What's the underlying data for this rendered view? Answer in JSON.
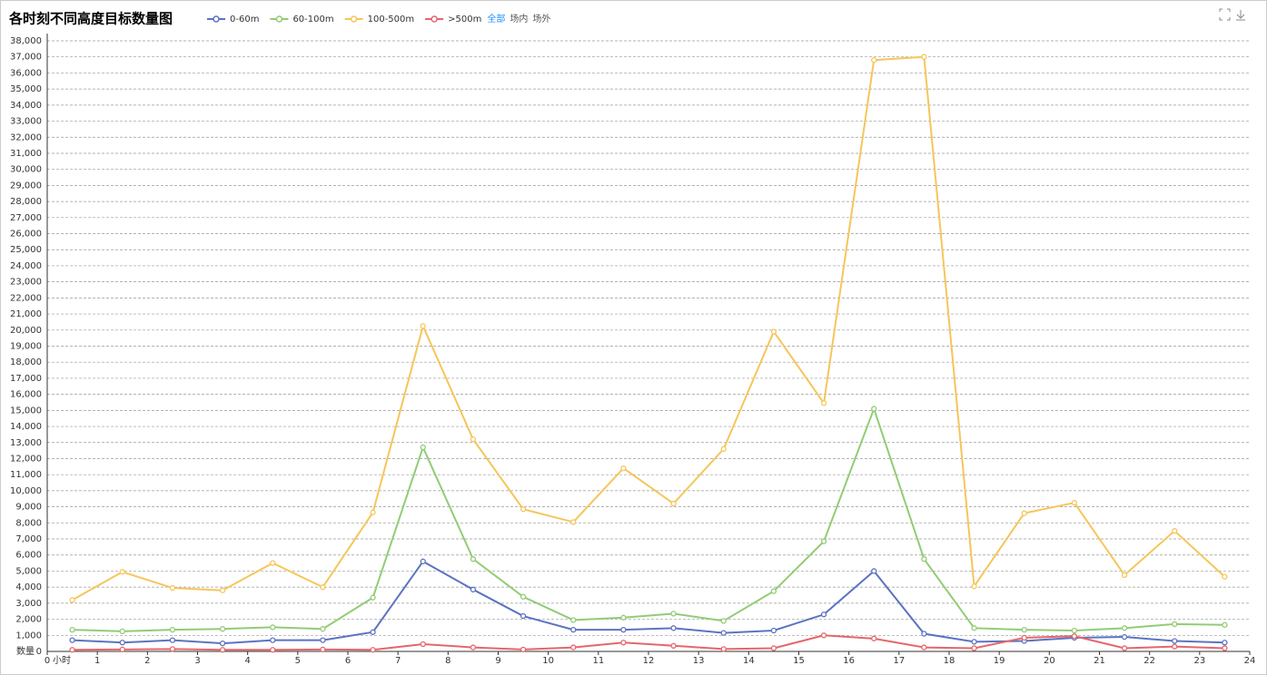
{
  "chart_data": {
    "type": "line",
    "title": "各时刻不同高度目标数量图",
    "x_label": "小时",
    "y_label": "数量",
    "filters": [
      "全部",
      "场内",
      "场外"
    ],
    "x": [
      0.5,
      1.5,
      2.5,
      3.5,
      4.5,
      5.5,
      6.5,
      7.5,
      8.5,
      9.5,
      10.5,
      11.5,
      12.5,
      13.5,
      14.5,
      15.5,
      16.5,
      17.5,
      18.5,
      19.5,
      20.5,
      21.5,
      22.5,
      23.5
    ],
    "series": [
      {
        "name": "0-60m",
        "color": "#5b73c2",
        "values": [
          700,
          550,
          700,
          500,
          700,
          700,
          1200,
          5600,
          3850,
          2200,
          1350,
          1350,
          1450,
          1150,
          1300,
          2300,
          5000,
          1100,
          600,
          650,
          850,
          900,
          650,
          550
        ]
      },
      {
        "name": "60-100m",
        "color": "#91cc75",
        "values": [
          1350,
          1250,
          1350,
          1400,
          1500,
          1400,
          3350,
          12700,
          5750,
          3400,
          1950,
          2100,
          2350,
          1900,
          3750,
          6850,
          15100,
          5750,
          1450,
          1350,
          1300,
          1450,
          1700,
          1650
        ]
      },
      {
        "name": "100-500m",
        "color": "#f5c65a",
        "values": [
          3200,
          4950,
          3950,
          3800,
          5500,
          4000,
          8650,
          20250,
          13200,
          8850,
          8050,
          11400,
          9200,
          12600,
          19900,
          15450,
          36800,
          37000,
          4050,
          8600,
          9250,
          4750,
          7500,
          4650
        ]
      },
      {
        "name": ">500m",
        "color": "#e5666a",
        "values": [
          100,
          120,
          150,
          100,
          100,
          120,
          100,
          450,
          250,
          120,
          250,
          550,
          350,
          150,
          200,
          1000,
          800,
          250,
          200,
          850,
          950,
          200,
          300,
          200
        ]
      }
    ],
    "xlim": [
      0,
      24
    ],
    "xticks": [
      0,
      1,
      2,
      3,
      4,
      5,
      6,
      7,
      8,
      9,
      10,
      11,
      12,
      13,
      14,
      15,
      16,
      17,
      18,
      19,
      20,
      21,
      22,
      23,
      24
    ],
    "ylim": [
      0,
      38000
    ],
    "yticks": [
      0,
      {
        "value": 1000,
        "label": "1,000"
      },
      {
        "value": 2000,
        "label": "2,000"
      },
      {
        "value": 3000,
        "label": "3,000"
      },
      {
        "value": 4000,
        "label": "4,000"
      },
      {
        "value": 5000,
        "label": "5,000"
      },
      {
        "value": 6000,
        "label": "6,000"
      },
      {
        "value": 7000,
        "label": "7,000"
      },
      {
        "value": 8000,
        "label": "8,000"
      },
      {
        "value": 9000,
        "label": "9,000"
      },
      {
        "value": 10000,
        "label": "10,000"
      },
      {
        "value": 11000,
        "label": "11,000"
      },
      {
        "value": 12000,
        "label": "12,000"
      },
      {
        "value": 13000,
        "label": "13,000"
      },
      {
        "value": 14000,
        "label": "14,000"
      },
      {
        "value": 15000,
        "label": "15,000"
      },
      {
        "value": 16000,
        "label": "16,000"
      },
      {
        "value": 17000,
        "label": "17,000"
      },
      {
        "value": 18000,
        "label": "18,000"
      },
      {
        "value": 19000,
        "label": "19,000"
      },
      {
        "value": 20000,
        "label": "20,000"
      },
      {
        "value": 21000,
        "label": "21,000"
      },
      {
        "value": 22000,
        "label": "22,000"
      },
      {
        "value": 23000,
        "label": "23,000"
      },
      {
        "value": 24000,
        "label": "24,000"
      },
      {
        "value": 25000,
        "label": "25,000"
      },
      {
        "value": 26000,
        "label": "26,000"
      },
      {
        "value": 27000,
        "label": "27,000"
      },
      {
        "value": 28000,
        "label": "28,000"
      },
      {
        "value": 29000,
        "label": "29,000"
      },
      {
        "value": 30000,
        "label": "30,000"
      },
      {
        "value": 31000,
        "label": "31,000"
      },
      {
        "value": 32000,
        "label": "32,000"
      },
      {
        "value": 33000,
        "label": "33,000"
      },
      {
        "value": 34000,
        "label": "34,000"
      },
      {
        "value": 35000,
        "label": "35,000"
      },
      {
        "value": 36000,
        "label": "36,000"
      },
      {
        "value": 37000,
        "label": "37,000"
      },
      {
        "value": 38000,
        "label": "38,000"
      }
    ],
    "grid": true
  }
}
